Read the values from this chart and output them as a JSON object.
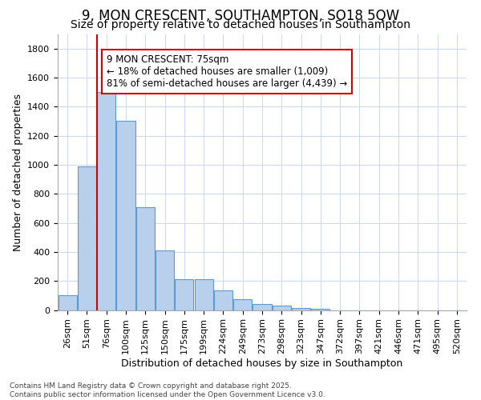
{
  "title": "9, MON CRESCENT, SOUTHAMPTON, SO18 5QW",
  "subtitle": "Size of property relative to detached houses in Southampton",
  "xlabel": "Distribution of detached houses by size in Southampton",
  "ylabel": "Number of detached properties",
  "categories": [
    "26sqm",
    "51sqm",
    "76sqm",
    "100sqm",
    "125sqm",
    "150sqm",
    "175sqm",
    "199sqm",
    "224sqm",
    "249sqm",
    "273sqm",
    "298sqm",
    "323sqm",
    "347sqm",
    "372sqm",
    "397sqm",
    "421sqm",
    "446sqm",
    "471sqm",
    "495sqm",
    "520sqm"
  ],
  "values": [
    100,
    990,
    1500,
    1300,
    710,
    410,
    210,
    210,
    135,
    75,
    40,
    30,
    15,
    10,
    0,
    0,
    0,
    0,
    0,
    0,
    0
  ],
  "bar_color": "#b8d0eb",
  "bar_edge_color": "#5b9bd5",
  "vline_x": 1.5,
  "vline_color": "#cc0000",
  "annotation_text": "9 MON CRESCENT: 75sqm\n← 18% of detached houses are smaller (1,009)\n81% of semi-detached houses are larger (4,439) →",
  "annotation_box_color": "#ffffff",
  "annotation_box_edge_color": "#cc0000",
  "ylim": [
    0,
    1900
  ],
  "yticks": [
    0,
    200,
    400,
    600,
    800,
    1000,
    1200,
    1400,
    1600,
    1800
  ],
  "background_color": "#ffffff",
  "grid_color": "#c8d8ee",
  "footnote": "Contains HM Land Registry data © Crown copyright and database right 2025.\nContains public sector information licensed under the Open Government Licence v3.0.",
  "title_fontsize": 12,
  "subtitle_fontsize": 10,
  "xlabel_fontsize": 9,
  "ylabel_fontsize": 9,
  "annot_fontsize": 8.5
}
